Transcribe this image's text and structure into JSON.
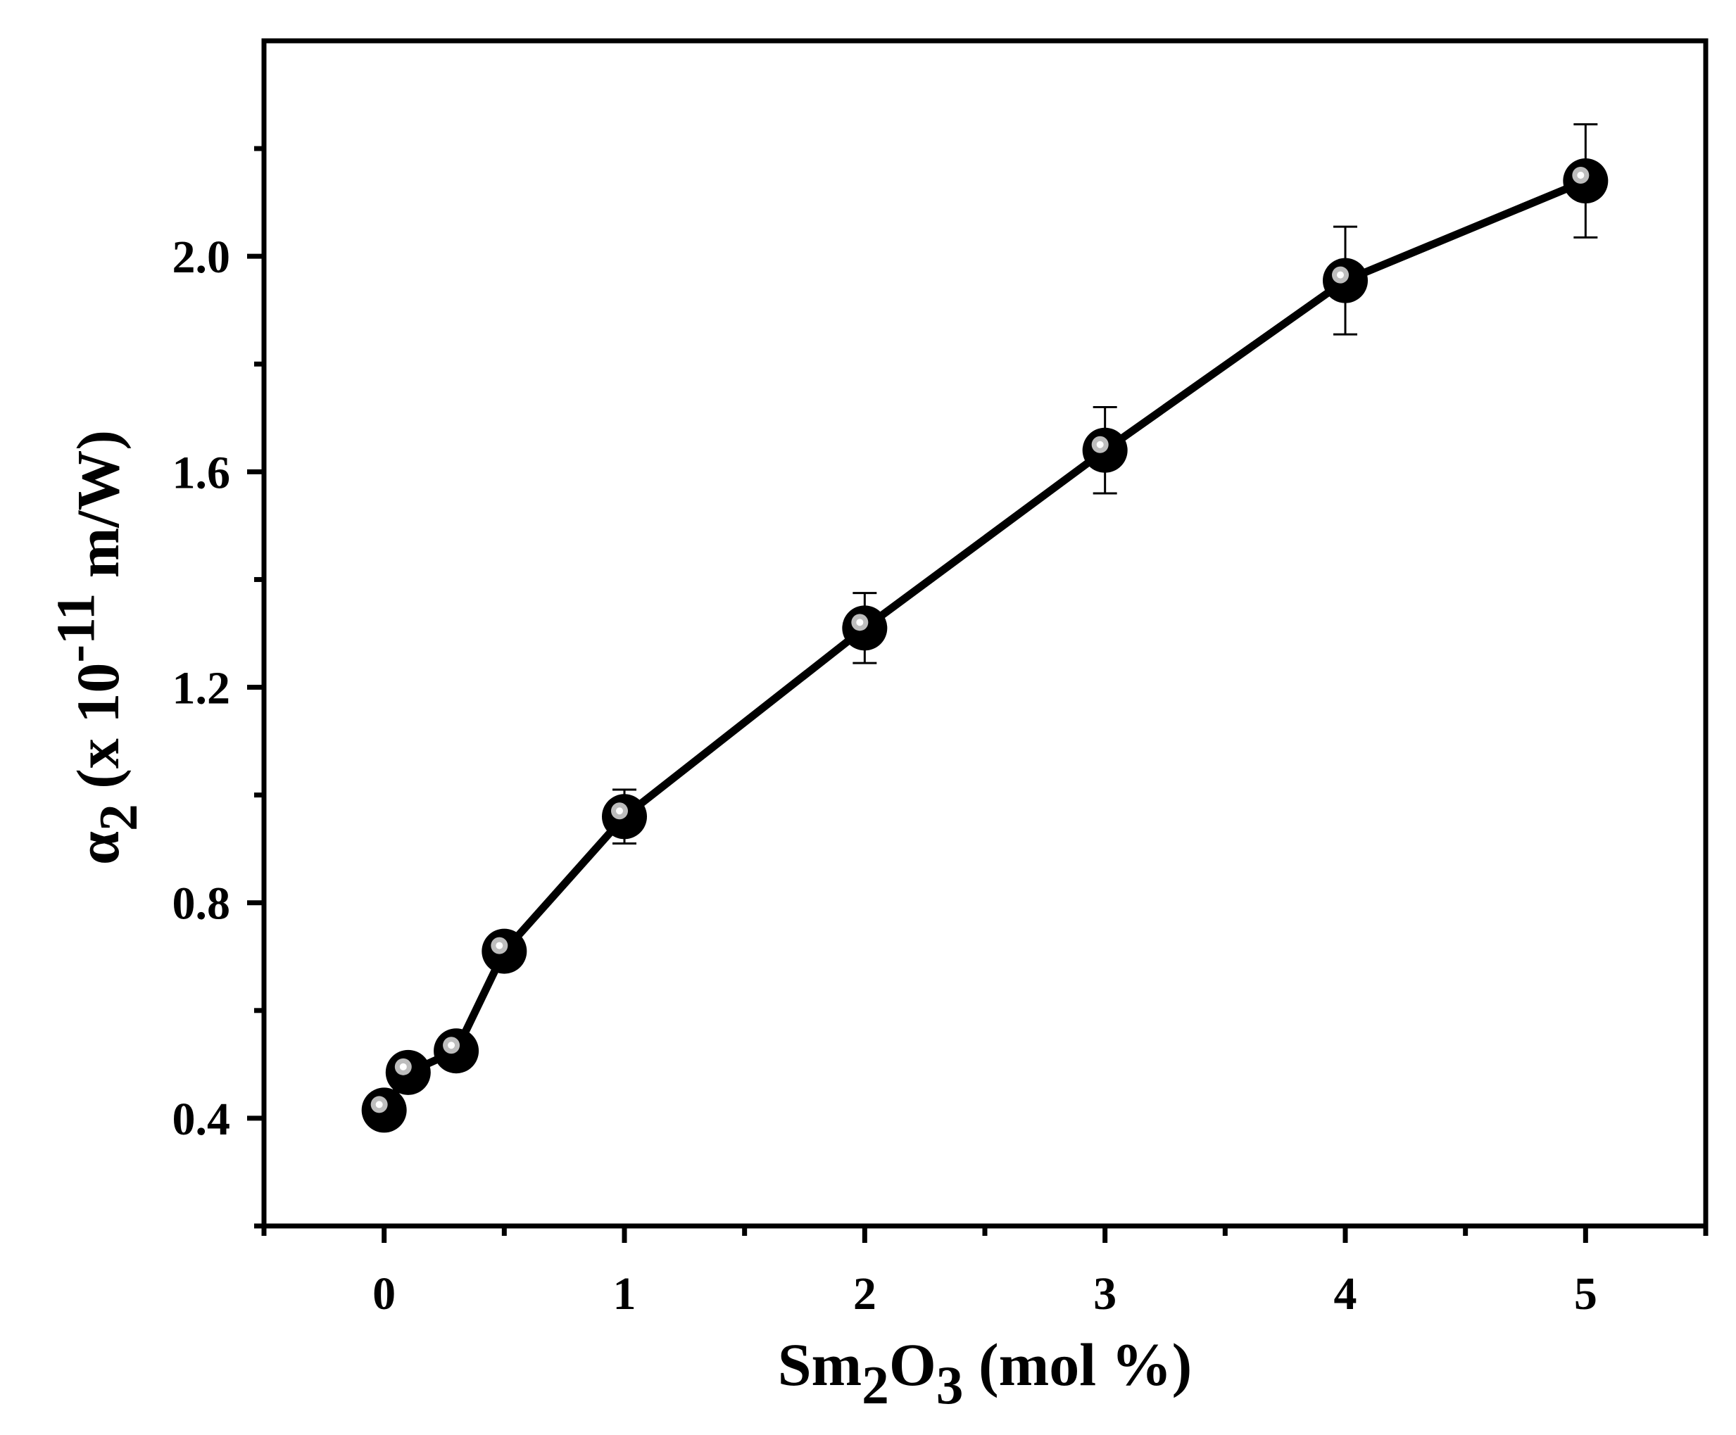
{
  "chart_data": {
    "type": "scatter",
    "title": "",
    "xlabel": {
      "parts": [
        {
          "text": "Sm",
          "script": "normal"
        },
        {
          "text": "2",
          "script": "sub"
        },
        {
          "text": "O",
          "script": "normal"
        },
        {
          "text": "3",
          "script": "sub"
        },
        {
          "text": " (mol %)",
          "script": "normal"
        }
      ]
    },
    "ylabel": {
      "parts": [
        {
          "text": "α",
          "script": "normal"
        },
        {
          "text": "2",
          "script": "sub"
        },
        {
          "text": " (x 10",
          "script": "normal"
        },
        {
          "text": "-11",
          "script": "super"
        },
        {
          "text": " m/W)",
          "script": "normal"
        }
      ]
    },
    "xlim": [
      -0.5,
      5.5
    ],
    "ylim": [
      0.2,
      2.4
    ],
    "x_ticks": [
      0,
      1,
      2,
      3,
      4,
      5
    ],
    "x_tick_labels": [
      "0",
      "1",
      "2",
      "3",
      "4",
      "5"
    ],
    "x_minor_ticks": [
      -0.5,
      0.5,
      1.5,
      2.5,
      3.5,
      4.5,
      5.5
    ],
    "y_ticks": [
      0.4,
      0.8,
      1.2,
      1.6,
      2.0
    ],
    "y_tick_labels": [
      "0.4",
      "0.8",
      "1.2",
      "1.6",
      "2.0"
    ],
    "y_minor_ticks": [
      0.2,
      0.6,
      1.0,
      1.4,
      1.8,
      2.2
    ],
    "grid": false,
    "legend": "none",
    "series": [
      {
        "line": true,
        "marker": "sphere",
        "color": "#000000",
        "highlight_color": "#bdbdbd",
        "points": [
          {
            "x": 0.0,
            "y": 0.415,
            "err": 0.02
          },
          {
            "x": 0.1,
            "y": 0.485,
            "err": 0.0
          },
          {
            "x": 0.3,
            "y": 0.525,
            "err": 0.0
          },
          {
            "x": 0.5,
            "y": 0.71,
            "err": 0.0
          },
          {
            "x": 1.0,
            "y": 0.96,
            "err": 0.05
          },
          {
            "x": 2.0,
            "y": 1.31,
            "err": 0.065
          },
          {
            "x": 3.0,
            "y": 1.64,
            "err": 0.08
          },
          {
            "x": 4.0,
            "y": 1.955,
            "err": 0.1
          },
          {
            "x": 5.0,
            "y": 2.14,
            "err": 0.105
          }
        ]
      }
    ]
  }
}
